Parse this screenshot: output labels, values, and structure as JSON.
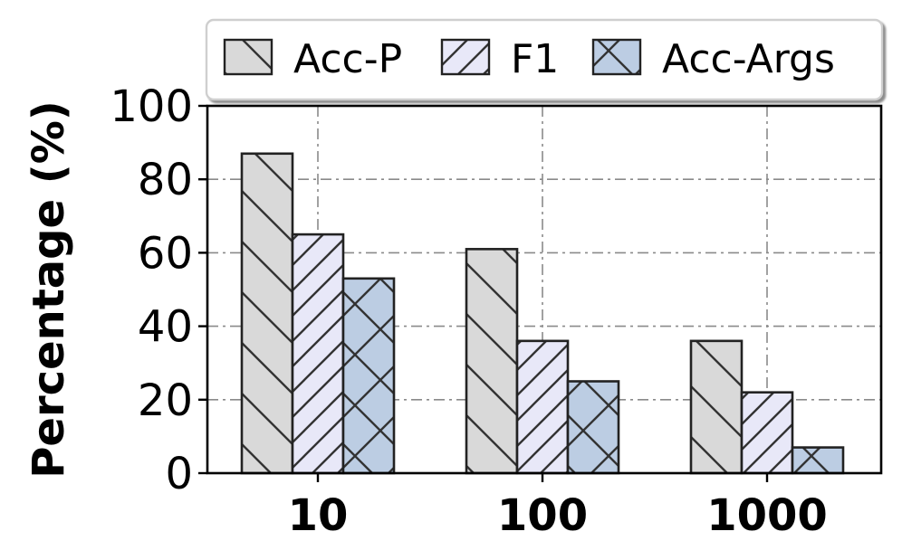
{
  "chart_data": {
    "type": "bar",
    "categories": [
      "10",
      "100",
      "1000"
    ],
    "series": [
      {
        "name": "Acc-P",
        "values": [
          87,
          61,
          36
        ],
        "color": "#d9d9d9",
        "hatch": "backslash"
      },
      {
        "name": "F1",
        "values": [
          65,
          36,
          22
        ],
        "color": "#e8e8f8",
        "hatch": "slash"
      },
      {
        "name": "Acc-Args",
        "values": [
          53,
          25,
          7
        ],
        "color": "#bccde3",
        "hatch": "cross"
      }
    ],
    "title": "",
    "xlabel": "",
    "ylabel": "Percentage (%)",
    "ylim": [
      0,
      100
    ],
    "yticks": [
      0,
      20,
      40,
      60,
      80,
      100
    ],
    "grid": true,
    "legend_position": "top"
  }
}
